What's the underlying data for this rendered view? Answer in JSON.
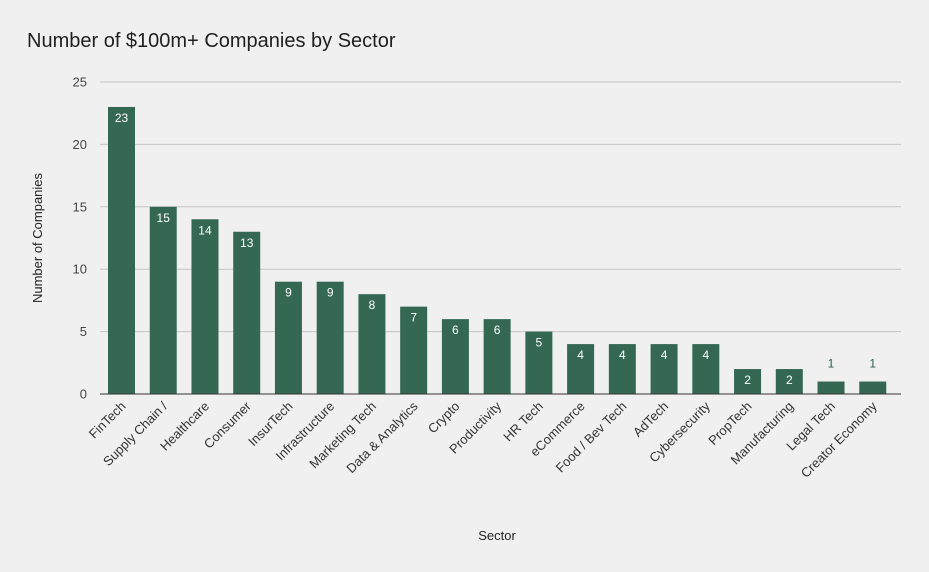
{
  "chart_data": {
    "type": "bar",
    "title": "Number of $100m+ Companies by Sector",
    "xlabel": "Sector",
    "ylabel": "Number of Companies",
    "ylim": [
      0,
      25
    ],
    "yticks": [
      0,
      5,
      10,
      15,
      20,
      25
    ],
    "grid": true,
    "legend": "none",
    "bar_color": "#346853",
    "categories": [
      "FinTech",
      "Supply Chain /",
      "Healthcare",
      "Consumer",
      "InsurTech",
      "Infrastructure",
      "Marketing Tech",
      "Data & Analytics",
      "Crypto",
      "Productivity",
      "HR Tech",
      "eCommerce",
      "Food / Bev Tech",
      "AdTech",
      "Cybersecurity",
      "PropTech",
      "Manufacturing",
      "Legal Tech",
      "Creator Economy"
    ],
    "values": [
      23,
      15,
      14,
      13,
      9,
      9,
      8,
      7,
      6,
      6,
      5,
      4,
      4,
      4,
      4,
      2,
      2,
      1,
      1
    ]
  }
}
